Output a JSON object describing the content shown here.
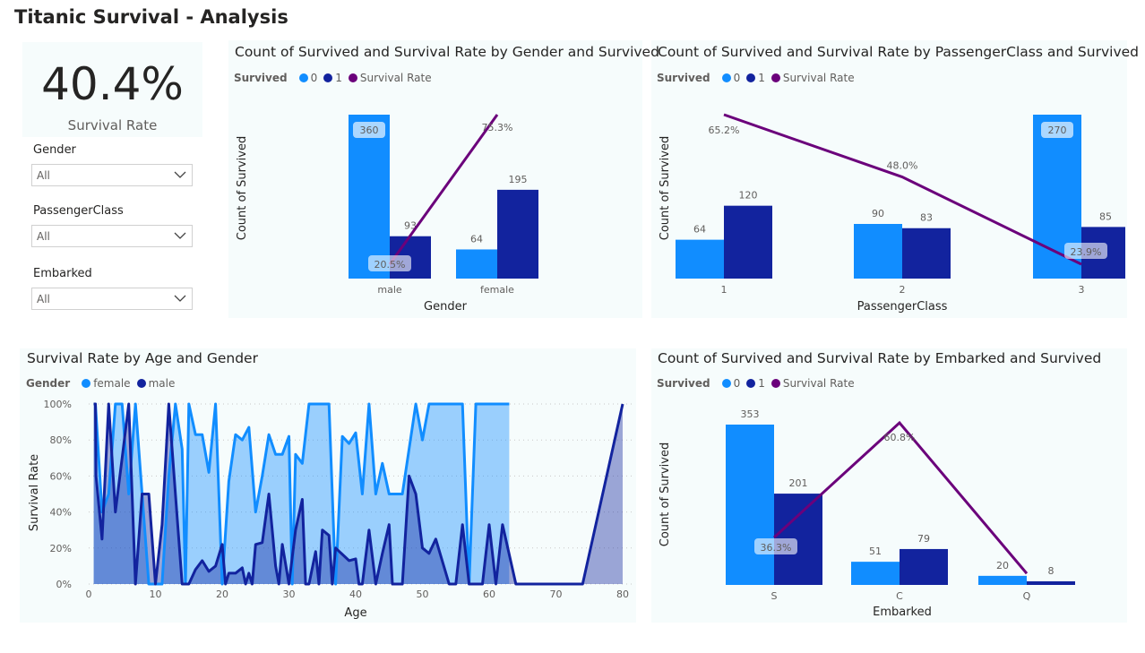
{
  "page_title": "Titanic Survival - Analysis",
  "colors": {
    "survived_0": "#118dff",
    "survived_1": "#12239e",
    "survival_rate": "#6b007b",
    "female": "#118dff",
    "male": "#12239e"
  },
  "card": {
    "value": "40.4%",
    "label": "Survival Rate"
  },
  "slicers": [
    {
      "label": "Gender",
      "value": "All"
    },
    {
      "label": "PassengerClass",
      "value": "All"
    },
    {
      "label": "Embarked",
      "value": "All"
    }
  ],
  "legend_combo": {
    "title": "Survived",
    "items": [
      "0",
      "1",
      "Survival Rate"
    ]
  },
  "legend_age": {
    "title": "Gender",
    "items": [
      "female",
      "male"
    ]
  },
  "chart_data": [
    {
      "type": "bar+line",
      "title": "Count of Survived and Survival Rate by Gender and Survived",
      "xlabel": "Gender",
      "ylabel": "Count of Survived",
      "categories": [
        "male",
        "female"
      ],
      "series": [
        {
          "name": "0",
          "values": [
            360,
            64
          ]
        },
        {
          "name": "1",
          "values": [
            93,
            195
          ]
        }
      ],
      "rate": {
        "name": "Survival Rate",
        "values": [
          20.5,
          75.3
        ],
        "labels": [
          "20.5%",
          "75.3%"
        ]
      },
      "bar_labels": [
        [
          "360",
          "64"
        ],
        [
          "93",
          "195"
        ]
      ]
    },
    {
      "type": "bar+line",
      "title": "Count of Survived and Survival Rate by PassengerClass and Survived",
      "xlabel": "PassengerClass",
      "ylabel": "Count of Survived",
      "categories": [
        "1",
        "2",
        "3"
      ],
      "series": [
        {
          "name": "0",
          "values": [
            64,
            90,
            270
          ]
        },
        {
          "name": "1",
          "values": [
            120,
            83,
            85
          ]
        }
      ],
      "rate": {
        "name": "Survival Rate",
        "values": [
          65.2,
          48.0,
          23.9
        ],
        "labels": [
          "65.2%",
          "48.0%",
          "23.9%"
        ]
      },
      "bar_labels": [
        [
          "64",
          "90",
          "270"
        ],
        [
          "120",
          "83",
          "85"
        ]
      ]
    },
    {
      "type": "area",
      "title": "Survival Rate by Age and Gender",
      "xlabel": "Age",
      "ylabel": "Survival Rate",
      "xlim": [
        0,
        80
      ],
      "ylim": [
        0,
        100
      ],
      "xticks": [
        "0",
        "10",
        "20",
        "30",
        "40",
        "50",
        "60",
        "70",
        "80"
      ],
      "yticks": [
        "0%",
        "20%",
        "40%",
        "60%",
        "80%",
        "100%"
      ],
      "grid": true,
      "series": [
        {
          "name": "female",
          "points": [
            [
              0.75,
              100
            ],
            [
              1,
              100
            ],
            [
              2,
              40
            ],
            [
              3,
              50
            ],
            [
              4,
              100
            ],
            [
              5,
              100
            ],
            [
              6,
              50
            ],
            [
              7,
              100
            ],
            [
              8,
              50
            ],
            [
              9,
              0
            ],
            [
              10,
              0
            ],
            [
              11,
              0
            ],
            [
              12,
              60
            ],
            [
              13,
              100
            ],
            [
              14,
              75
            ],
            [
              14.5,
              0
            ],
            [
              15,
              100
            ],
            [
              16,
              83
            ],
            [
              17,
              83
            ],
            [
              18,
              62
            ],
            [
              19,
              100
            ],
            [
              20,
              0
            ],
            [
              21,
              57
            ],
            [
              22,
              83
            ],
            [
              23,
              80
            ],
            [
              24,
              87
            ],
            [
              25,
              40
            ],
            [
              26,
              60
            ],
            [
              27,
              83
            ],
            [
              28,
              72
            ],
            [
              29,
              72
            ],
            [
              30,
              82
            ],
            [
              30.5,
              0
            ],
            [
              31,
              72
            ],
            [
              32,
              67
            ],
            [
              33,
              100
            ],
            [
              34,
              100
            ],
            [
              35,
              100
            ],
            [
              36,
              100
            ],
            [
              37,
              0
            ],
            [
              38,
              82
            ],
            [
              39,
              78
            ],
            [
              40,
              84
            ],
            [
              41,
              50
            ],
            [
              42,
              100
            ],
            [
              43,
              50
            ],
            [
              44,
              67
            ],
            [
              45,
              50
            ],
            [
              46,
              50
            ],
            [
              47,
              50
            ],
            [
              48,
              75
            ],
            [
              49,
              100
            ],
            [
              50,
              80
            ],
            [
              51,
              100
            ],
            [
              52,
              100
            ],
            [
              53,
              100
            ],
            [
              54,
              100
            ],
            [
              55,
              100
            ],
            [
              56,
              100
            ],
            [
              57,
              0
            ],
            [
              58,
              100
            ],
            [
              59,
              100
            ],
            [
              60,
              100
            ],
            [
              61,
              100
            ],
            [
              62,
              100
            ],
            [
              63,
              100
            ]
          ]
        },
        {
          "name": "male",
          "points": [
            [
              0.75,
              100
            ],
            [
              1,
              100
            ],
            [
              1.1,
              60
            ],
            [
              2,
              25
            ],
            [
              3,
              100
            ],
            [
              4,
              40
            ],
            [
              5,
              70
            ],
            [
              6,
              100
            ],
            [
              7,
              0
            ],
            [
              8,
              50
            ],
            [
              9,
              50
            ],
            [
              10,
              0
            ],
            [
              11,
              33
            ],
            [
              12,
              100
            ],
            [
              13,
              50
            ],
            [
              14,
              0
            ],
            [
              15,
              0
            ],
            [
              16,
              8
            ],
            [
              17,
              13
            ],
            [
              18,
              7
            ],
            [
              19,
              10
            ],
            [
              20,
              22
            ],
            [
              20.5,
              0
            ],
            [
              21,
              6
            ],
            [
              22,
              6
            ],
            [
              23,
              9
            ],
            [
              23.5,
              0
            ],
            [
              24,
              6
            ],
            [
              24.5,
              0
            ],
            [
              25,
              22
            ],
            [
              26,
              23
            ],
            [
              27,
              50
            ],
            [
              28,
              10
            ],
            [
              28.5,
              0
            ],
            [
              29,
              22
            ],
            [
              30,
              0
            ],
            [
              31,
              30
            ],
            [
              32,
              47
            ],
            [
              32.5,
              0
            ],
            [
              33,
              0
            ],
            [
              34,
              18
            ],
            [
              34.5,
              0
            ],
            [
              35,
              30
            ],
            [
              36,
              27
            ],
            [
              36.5,
              0
            ],
            [
              37,
              20
            ],
            [
              39,
              13
            ],
            [
              40,
              14
            ],
            [
              40.5,
              0
            ],
            [
              41,
              0
            ],
            [
              42,
              30
            ],
            [
              43,
              0
            ],
            [
              44,
              17
            ],
            [
              45,
              33
            ],
            [
              45.5,
              0
            ],
            [
              47,
              0
            ],
            [
              48,
              60
            ],
            [
              49,
              50
            ],
            [
              50,
              20
            ],
            [
              51,
              17
            ],
            [
              52,
              25
            ],
            [
              54,
              0
            ],
            [
              55,
              0
            ],
            [
              56,
              33
            ],
            [
              57,
              0
            ],
            [
              59,
              0
            ],
            [
              60,
              33
            ],
            [
              61,
              0
            ],
            [
              62,
              33
            ],
            [
              64,
              0
            ],
            [
              74,
              0
            ],
            [
              80,
              100
            ]
          ]
        }
      ]
    },
    {
      "type": "bar+line",
      "title": "Count of Survived and Survival Rate by Embarked and Survived",
      "xlabel": "Embarked",
      "ylabel": "Count of Survived",
      "categories": [
        "S",
        "C",
        "Q"
      ],
      "series": [
        {
          "name": "0",
          "values": [
            353,
            51,
            20
          ]
        },
        {
          "name": "1",
          "values": [
            201,
            79,
            8
          ]
        }
      ],
      "rate": {
        "name": "Survival Rate",
        "values": [
          36.3,
          60.8,
          28.6
        ],
        "labels": [
          "36.3%",
          "60.8%",
          ""
        ]
      },
      "bar_labels": [
        [
          "353",
          "51",
          "20"
        ],
        [
          "201",
          "79",
          "8"
        ]
      ]
    }
  ]
}
